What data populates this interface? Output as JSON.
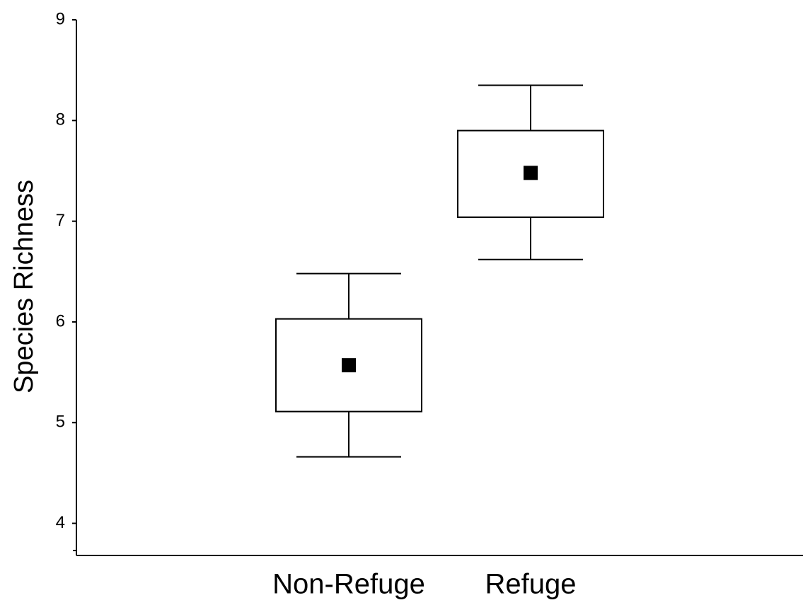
{
  "chart_data": {
    "type": "box",
    "ylabel": "Species Richness",
    "categories": [
      "Non-Refuge",
      "Refuge"
    ],
    "series": [
      {
        "name": "Non-Refuge",
        "mean": 5.57,
        "box_low": 5.11,
        "box_high": 6.03,
        "whisker_low": 4.66,
        "whisker_high": 6.48
      },
      {
        "name": "Refuge",
        "mean": 7.48,
        "box_low": 7.04,
        "box_high": 7.9,
        "whisker_low": 6.62,
        "whisker_high": 8.35
      }
    ],
    "color": "#000000",
    "ylim": [
      3.73,
      9
    ],
    "yticks": [
      4,
      5,
      6,
      7,
      8,
      9
    ],
    "grid": false
  }
}
